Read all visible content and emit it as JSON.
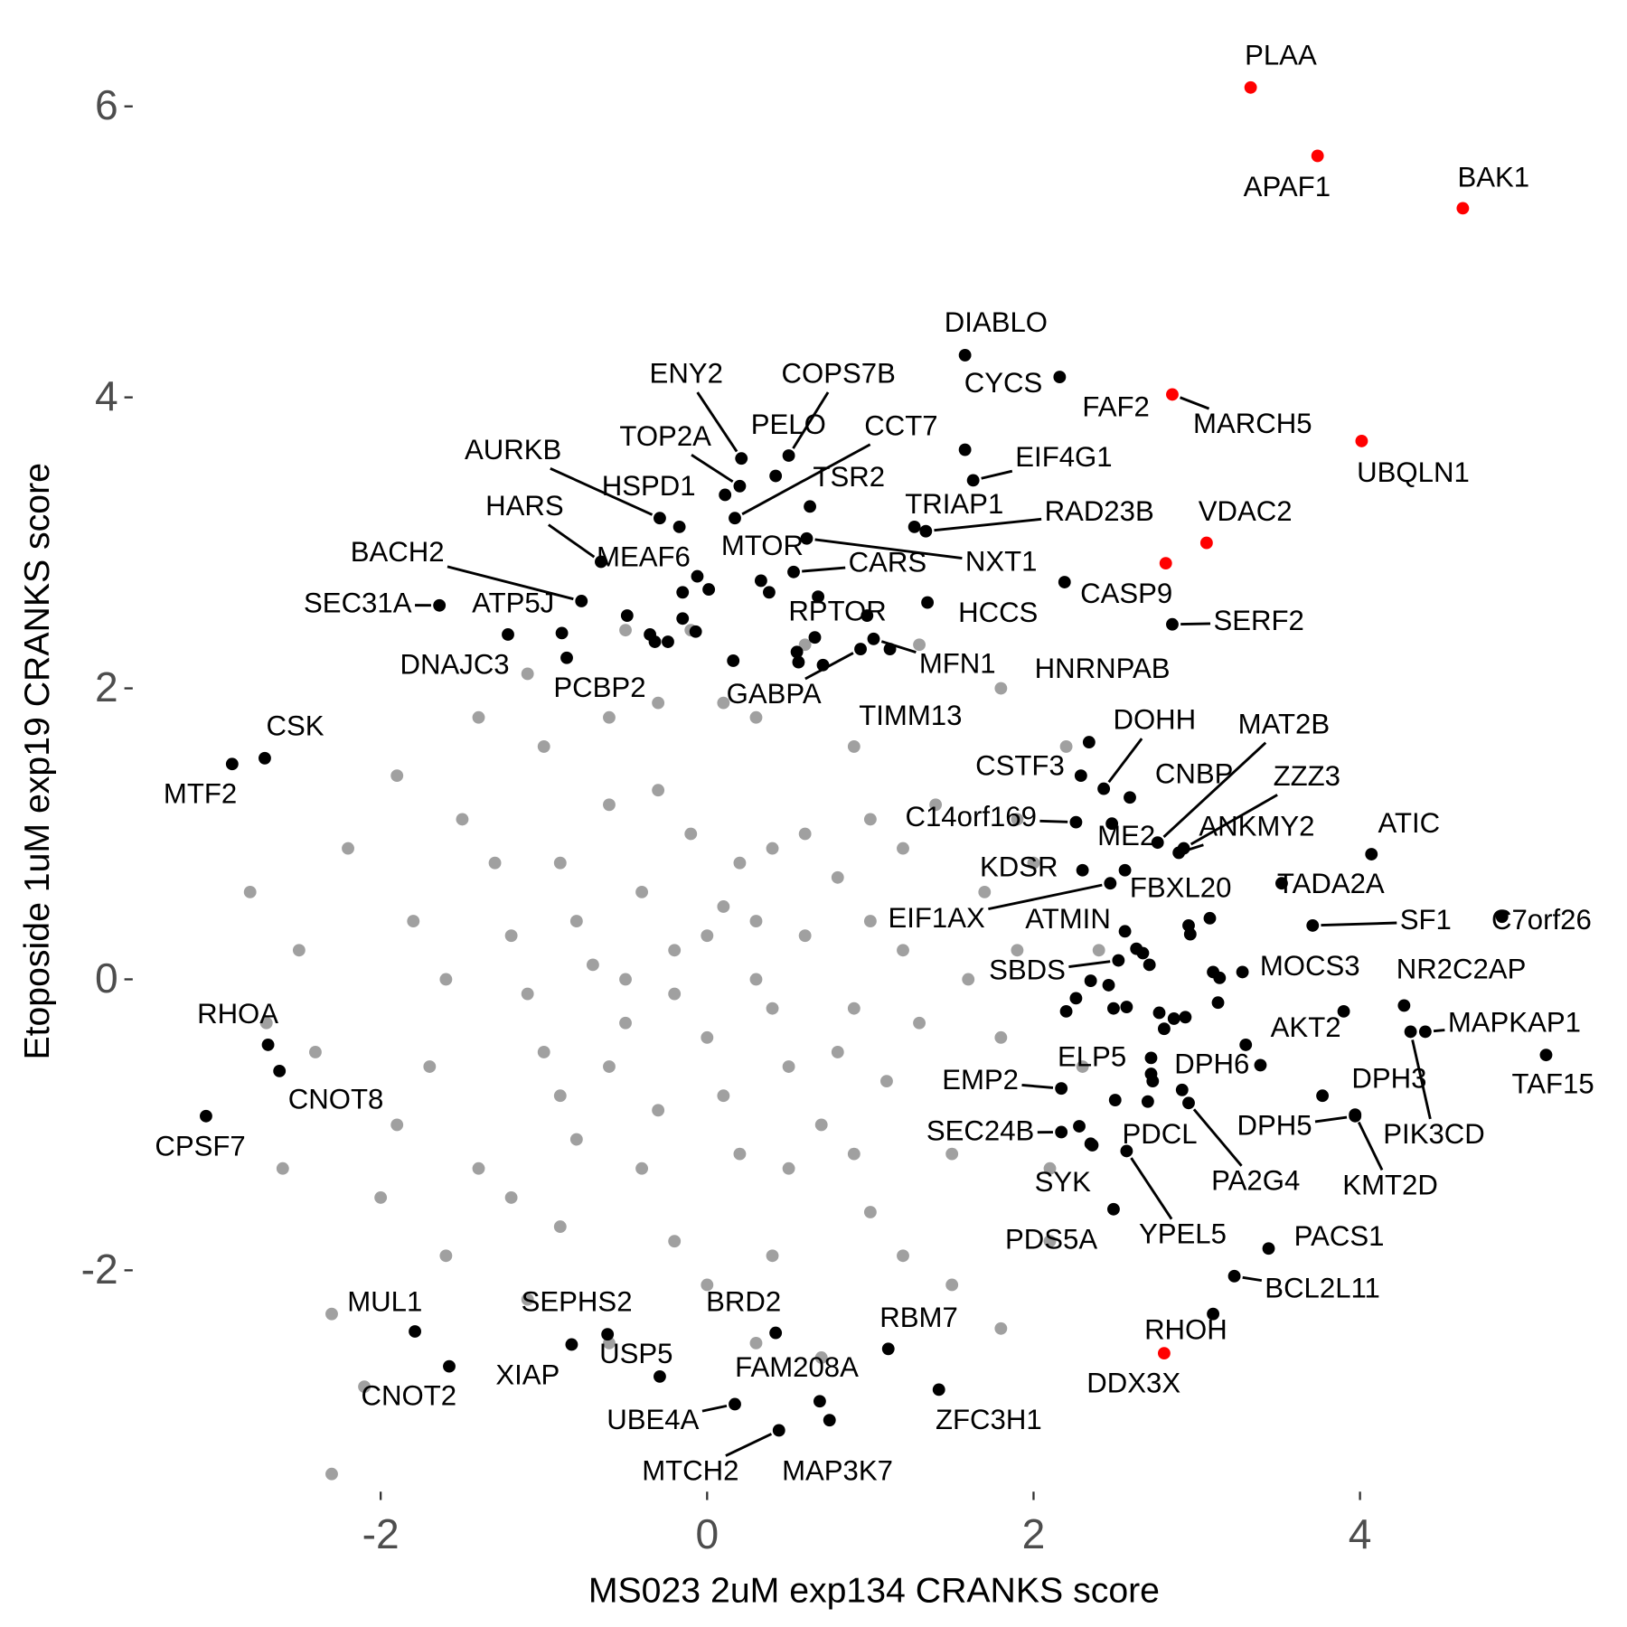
{
  "chart_data": {
    "type": "scatter",
    "x_label": "MS023 2uM exp134 CRANKS score",
    "y_label": "Etoposide 1uM exp19 CRANKS score",
    "xlim": [
      -3.5,
      5.5
    ],
    "ylim": [
      -3.5,
      6.5
    ],
    "xticks": [
      -2,
      0,
      2,
      4
    ],
    "yticks": [
      -2,
      0,
      2,
      4,
      6
    ],
    "grid": false,
    "series": [
      {
        "color": "#a0a0a0",
        "x": [
          -1.2,
          -1.0,
          -0.9,
          -0.8,
          -0.7,
          -0.6,
          -0.5,
          -0.4,
          -0.3,
          -0.2,
          -0.1,
          0.0,
          0.1,
          0.2,
          0.3,
          0.4,
          0.5,
          0.6,
          0.7,
          0.8,
          0.9,
          1.0,
          1.1,
          1.2,
          1.3,
          -1.1,
          -0.9,
          -0.6,
          -0.4,
          -0.2,
          0.0,
          0.2,
          0.4,
          0.6,
          0.8,
          1.0,
          -1.3,
          -0.8,
          -0.3,
          0.1,
          0.5,
          0.9,
          1.2,
          -0.5,
          0.3,
          -1.8,
          -1.7,
          -1.5,
          -1.4,
          -1.0,
          -0.9,
          -0.3,
          -0.2,
          0.3,
          0.4,
          0.9,
          1.0,
          1.4,
          1.5,
          1.7,
          1.8,
          1.6,
          -1.6,
          -1.2,
          0.0,
          0.1,
          1.2,
          -0.6,
          -1.9,
          1.9,
          -2.8,
          -2.5,
          -2.4,
          -2.2,
          -2.0,
          -2.3,
          -2.1,
          -2.3,
          -1.6,
          -1.1,
          -0.6,
          0.3,
          0.7,
          1.5,
          1.8,
          2.1,
          2.3,
          2.0,
          2.2,
          1.8,
          1.3,
          -0.5,
          -1.1,
          -1.4,
          -2.6,
          -1.9,
          2.1,
          1.9,
          -0.1,
          0.6,
          -2.7,
          2.4
        ],
        "values": [
          0.3,
          -0.5,
          0.8,
          -1.1,
          0.1,
          1.2,
          -0.3,
          0.6,
          -0.9,
          0.2,
          1.0,
          -0.4,
          0.5,
          -1.2,
          0.0,
          0.9,
          -0.6,
          0.3,
          -1.0,
          0.7,
          -0.2,
          1.1,
          -0.7,
          0.2,
          -0.3,
          -0.1,
          -0.8,
          -0.6,
          -1.3,
          -0.1,
          0.3,
          0.8,
          -0.2,
          1.0,
          -0.5,
          0.4,
          0.8,
          0.4,
          1.3,
          -0.8,
          -1.3,
          -1.2,
          0.9,
          0.0,
          0.4,
          0.4,
          -0.6,
          1.1,
          -1.3,
          1.6,
          -1.7,
          1.9,
          -1.8,
          1.8,
          -1.9,
          1.6,
          -1.6,
          1.2,
          -1.2,
          0.6,
          -0.4,
          0.0,
          0.0,
          -1.5,
          -2.1,
          1.9,
          -1.9,
          1.8,
          -1.0,
          0.2,
          0.6,
          0.2,
          -0.5,
          0.9,
          -1.5,
          -2.3,
          -2.8,
          -3.4,
          -1.9,
          -2.2,
          -2.5,
          -2.5,
          -2.6,
          -2.1,
          -2.4,
          -1.8,
          -0.6,
          0.8,
          1.6,
          2.0,
          2.3,
          2.4,
          2.1,
          1.8,
          -1.3,
          1.4,
          -1.3,
          1.1,
          2.4,
          2.3,
          -0.3,
          0.2
        ]
      },
      {
        "color": "#000000",
        "x": [
          -0.15,
          0.01,
          -0.15,
          -0.07,
          -0.49,
          -0.35,
          -0.32,
          -0.24,
          0.33,
          0.38,
          0.68,
          0.98,
          0.16,
          0.55,
          0.56,
          0.71,
          2.19,
          3.08,
          2.95,
          2.96,
          3.1,
          3.14,
          2.2,
          2.35,
          2.46,
          2.63,
          2.67,
          2.71,
          2.57,
          2.77,
          2.86,
          2.8,
          2.93,
          3.13,
          3.9,
          3.39,
          2.72,
          2.5,
          2.28,
          2.36,
          2.73,
          2.49,
          2.26
        ],
        "values": [
          2.66,
          2.68,
          2.48,
          2.39,
          2.5,
          2.37,
          2.32,
          2.32,
          2.74,
          2.66,
          2.63,
          2.5,
          2.19,
          2.25,
          2.18,
          2.16,
          2.73,
          0.42,
          0.37,
          0.31,
          0.05,
          0.01,
          -0.22,
          -0.01,
          -0.04,
          0.21,
          0.18,
          0.1,
          -0.19,
          -0.23,
          -0.27,
          -0.34,
          -0.26,
          -0.16,
          -0.22,
          -0.59,
          -0.65,
          -0.83,
          -1.01,
          -1.14,
          -0.7,
          -0.2,
          -0.13
        ]
      },
      {
        "color": "#000000",
        "labels": [
          "DIABLO",
          "CYCS",
          "FAF2",
          "EIF4G1",
          "ENY2",
          "COPS7B",
          "PELO",
          "CCT7",
          "TOP2A",
          "AURKB",
          "HSPD1",
          "TSR2",
          "HARS",
          "TRIAP1",
          "RAD23B",
          "MTOR",
          "MEAF6",
          "NXT1",
          "CARS",
          "BACH2",
          "SEC31A",
          "ATP5J",
          "SERF2",
          "HCCS",
          "RPTOR",
          "DNAJC3",
          "MFN1",
          "PCBP2",
          "GABPA",
          "TIMM13",
          "HNRNPAB",
          "DOHH",
          "MAT2B",
          "CSK",
          "MTF2",
          "CSTF3",
          "CNBP",
          "ZZZ3",
          "C14orf169",
          "ME2",
          "ANKMY2",
          "ATIC",
          "KDSR",
          "FBXL20",
          "TADA2A",
          "EIF1AX",
          "ATMIN",
          "SF1",
          "C7orf26",
          "SBDS",
          "MOCS3",
          "NR2C2AP",
          "RHOA",
          "AKT2",
          "MAPKAP1",
          "TAF15",
          "ELP5",
          "DPH6",
          "EMP2",
          "DPH3",
          "CNOT8",
          "CPSF7",
          "DPH5",
          "PIK3CD",
          "SEC24B",
          "PDCL",
          "SYK",
          "PA2G4",
          "KMT2D",
          "YPEL5",
          "PDS5A",
          "PACS1",
          "BCL2L11",
          "RHOH",
          "MUL1",
          "SEPHS2",
          "BRD2",
          "RBM7",
          "XIAP",
          "USP5",
          "CNOT2",
          "FAM208A",
          "ZFC3H1",
          "UBE4A",
          "MTCH2",
          "MAP3K7"
        ],
        "x": [
          1.58,
          1.58,
          2.16,
          1.63,
          0.21,
          0.5,
          0.42,
          0.17,
          0.2,
          -0.29,
          -0.17,
          0.63,
          -0.65,
          1.27,
          1.34,
          0.11,
          -0.06,
          0.61,
          0.53,
          -0.77,
          -1.64,
          -0.89,
          2.85,
          1.35,
          0.66,
          -1.22,
          1.02,
          -0.86,
          0.94,
          1.12,
          2.34,
          2.43,
          2.76,
          -2.71,
          -2.91,
          2.29,
          2.59,
          2.92,
          2.26,
          2.48,
          2.89,
          4.07,
          2.3,
          2.56,
          3.52,
          2.47,
          2.56,
          3.71,
          4.87,
          2.52,
          3.28,
          4.27,
          -2.69,
          3.3,
          4.4,
          5.14,
          2.72,
          2.91,
          2.17,
          3.77,
          -2.62,
          -3.07,
          3.97,
          4.31,
          2.17,
          2.7,
          2.35,
          2.95,
          3.97,
          2.57,
          2.49,
          3.44,
          3.23,
          3.1,
          -1.79,
          -0.61,
          0.42,
          1.11,
          -0.83,
          -0.29,
          -1.58,
          0.69,
          1.42,
          0.17,
          0.44,
          0.75
        ],
        "values": [
          4.29,
          3.64,
          4.14,
          3.43,
          3.58,
          3.6,
          3.46,
          3.17,
          3.39,
          3.17,
          3.11,
          3.25,
          2.87,
          3.11,
          3.08,
          3.33,
          2.77,
          3.03,
          2.8,
          2.6,
          2.57,
          2.38,
          2.44,
          2.59,
          2.35,
          2.37,
          2.34,
          2.21,
          2.27,
          2.27,
          1.63,
          1.31,
          0.94,
          1.52,
          1.48,
          1.4,
          1.25,
          0.9,
          1.08,
          1.07,
          0.87,
          0.86,
          0.75,
          0.75,
          0.66,
          0.66,
          0.33,
          0.37,
          0.43,
          0.13,
          0.05,
          -0.18,
          -0.45,
          -0.45,
          -0.36,
          -0.52,
          -0.54,
          -0.76,
          -0.75,
          -0.8,
          -0.63,
          -0.94,
          -0.94,
          -0.36,
          -1.05,
          -0.84,
          -1.13,
          -0.85,
          -0.93,
          -1.18,
          -1.58,
          -1.85,
          -2.04,
          -2.3,
          -2.42,
          -2.44,
          -2.43,
          -2.54,
          -2.51,
          -2.73,
          -2.66,
          -2.9,
          -2.82,
          -2.92,
          -3.1,
          -3.03
        ]
      },
      {
        "color": "#ff0000",
        "labels": [
          "PLAA",
          "APAF1",
          "BAK1",
          "MARCH5",
          "UBQLN1",
          "VDAC2",
          "CASP9",
          "DDX3X"
        ],
        "x": [
          3.33,
          3.74,
          4.63,
          2.85,
          4.01,
          3.06,
          2.81,
          2.8
        ],
        "values": [
          6.13,
          5.66,
          5.3,
          4.02,
          3.7,
          3.0,
          2.86,
          -2.57
        ]
      }
    ]
  }
}
